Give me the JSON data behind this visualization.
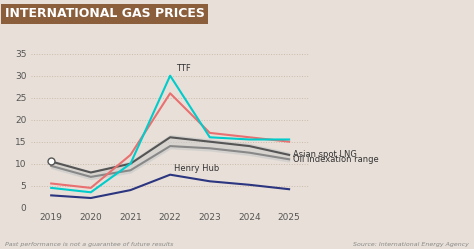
{
  "title": "INTERNATIONAL GAS PRICES",
  "title_bg_color": "#8B5E3C",
  "title_text_color": "#FFFFFF",
  "bg_color": "#E8E0D8",
  "plot_bg_color": "#E8E0D8",
  "years": [
    2019,
    2020,
    2021,
    2022,
    2023,
    2024,
    2025
  ],
  "ttf": [
    null,
    null,
    null,
    30.0,
    null,
    null,
    null
  ],
  "asian_spot_lng_upper": [
    10.5,
    8.0,
    10.0,
    16.0,
    15.0,
    14.0,
    12.0
  ],
  "asian_spot_lng_lower": [
    9.5,
    7.0,
    8.5,
    14.0,
    13.5,
    12.5,
    11.0
  ],
  "oil_indexation_upper": [
    10.8,
    8.2,
    10.5,
    16.5,
    15.5,
    14.5,
    12.5
  ],
  "oil_indexation_lower": [
    9.0,
    6.5,
    8.0,
    13.5,
    13.0,
    12.0,
    10.5
  ],
  "henry_hub": [
    2.8,
    2.2,
    4.0,
    7.5,
    6.0,
    5.2,
    4.2
  ],
  "pink_line": [
    5.5,
    4.5,
    12.0,
    26.0,
    17.0,
    16.0,
    15.0
  ],
  "cyan_line": [
    4.5,
    3.5,
    10.0,
    30.0,
    16.0,
    15.5,
    15.5
  ],
  "ttf_label": "TTF",
  "henry_hub_label": "Henry Hub",
  "asian_spot_label": "Asian spot LNG",
  "oil_index_label": "Oil indexation range",
  "footnote_left": "Past performance is not a guarantee of future results",
  "footnote_right": "Source: International Energy Agency",
  "ylim": [
    0,
    37
  ],
  "yticks": [
    0,
    5,
    10,
    15,
    20,
    25,
    30,
    35
  ],
  "grid_color": "#CCBBAA",
  "colors": {
    "cyan": "#00CCCC",
    "pink": "#E87070",
    "dark_gray_upper": "#555555",
    "dark_gray_lower": "#888888",
    "navy": "#2B3580",
    "band_fill": "#CCCCCC"
  }
}
